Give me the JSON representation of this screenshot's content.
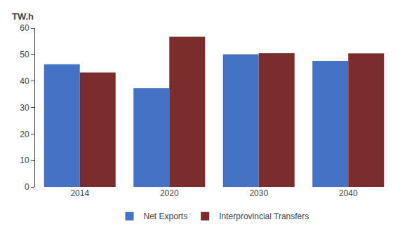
{
  "chart_data": {
    "type": "bar",
    "categories": [
      "2014",
      "2020",
      "2030",
      "2040"
    ],
    "series": [
      {
        "name": "Net Exports",
        "color": "#4472C4",
        "values": [
          46.3,
          37.3,
          50.1,
          47.6
        ]
      },
      {
        "name": "Interprovincial Transfers",
        "color": "#7B2C2C",
        "values": [
          43.2,
          56.7,
          50.5,
          50.4
        ]
      }
    ],
    "ylabel": "TW.h",
    "ylim": [
      0,
      60
    ],
    "yticks": [
      0,
      10,
      20,
      30,
      40,
      50,
      60
    ],
    "grid": false,
    "legend": "bottom"
  }
}
